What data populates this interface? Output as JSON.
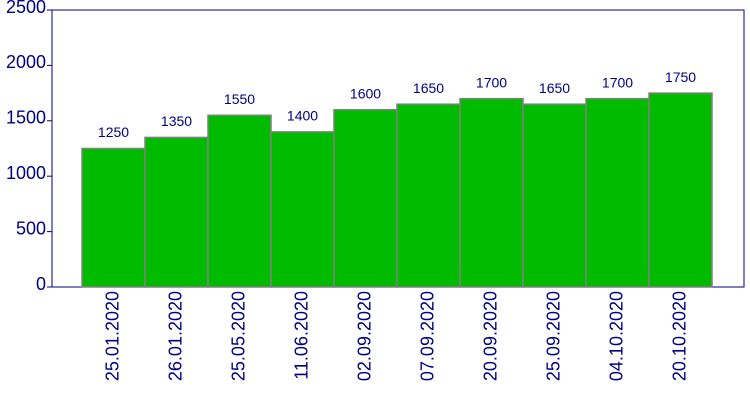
{
  "chart_data": {
    "type": "bar",
    "categories": [
      "25.01.2020",
      "26.01.2020",
      "25.05.2020",
      "11.06.2020",
      "02.09.2020",
      "07.09.2020",
      "20.09.2020",
      "25.09.2020",
      "04.10.2020",
      "20.10.2020"
    ],
    "values": [
      1250,
      1350,
      1550,
      1400,
      1600,
      1650,
      1700,
      1650,
      1700,
      1750
    ],
    "color": "#00bb00",
    "ylim": [
      0,
      2500
    ],
    "yticks": [
      0,
      500,
      1000,
      1500,
      2000,
      2500
    ],
    "grid": false
  }
}
